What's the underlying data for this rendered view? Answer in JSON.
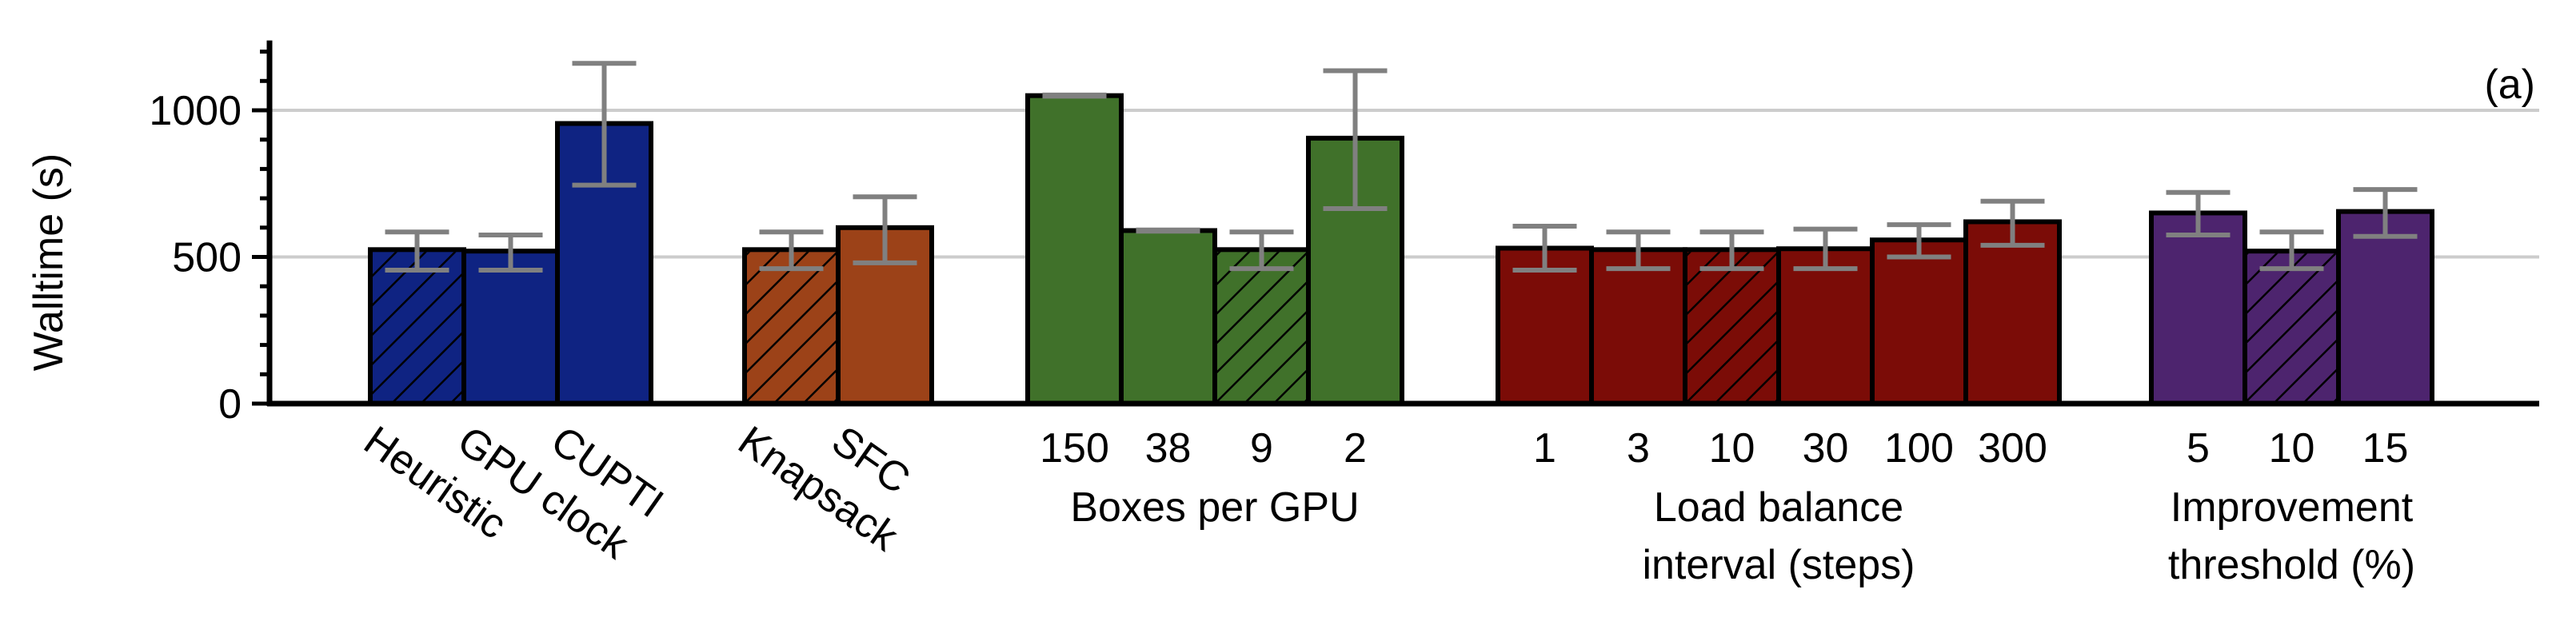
{
  "chart_data": {
    "type": "bar",
    "panel_label": "(a)",
    "ylabel": "Walltime (s)",
    "ylim": [
      0,
      1230
    ],
    "yticks": [
      0,
      500,
      1000
    ],
    "grid": "horizontal",
    "colors": {
      "costs": "#0f2382",
      "strategy": "#9c4218",
      "boxes": "#40712a",
      "interval": "#7b0c07",
      "threshold": "#4d246e",
      "errorbar": "#808080",
      "grid": "#cccccc"
    },
    "groups": [
      {
        "id": "costs",
        "label": "",
        "tick_rotation": 35,
        "categories": [
          "Heuristic",
          "GPU clock",
          "CUPTI"
        ],
        "values": [
          525,
          520,
          955
        ],
        "err_low": [
          455,
          455,
          745
        ],
        "err_high": [
          585,
          575,
          1160
        ],
        "hatched": [
          true,
          false,
          false
        ]
      },
      {
        "id": "strategy",
        "label": "",
        "tick_rotation": 35,
        "categories": [
          "Knapsack",
          "SFC"
        ],
        "values": [
          525,
          600
        ],
        "err_low": [
          460,
          480
        ],
        "err_high": [
          585,
          705
        ],
        "hatched": [
          true,
          false
        ]
      },
      {
        "id": "boxes",
        "label": "Boxes per GPU",
        "tick_rotation": 0,
        "categories": [
          "150",
          "38",
          "9",
          "2"
        ],
        "values": [
          1050,
          590,
          525,
          905
        ],
        "err_low": [
          1048,
          588,
          460,
          665
        ],
        "err_high": [
          1052,
          592,
          585,
          1135
        ],
        "hatched": [
          false,
          false,
          true,
          false
        ]
      },
      {
        "id": "interval",
        "label": "Load balance\ninterval (steps)",
        "tick_rotation": 0,
        "categories": [
          "1",
          "3",
          "10",
          "30",
          "100",
          "300"
        ],
        "values": [
          530,
          525,
          525,
          528,
          558,
          620
        ],
        "err_low": [
          455,
          460,
          460,
          460,
          500,
          540
        ],
        "err_high": [
          605,
          585,
          585,
          595,
          610,
          690
        ],
        "hatched": [
          false,
          false,
          true,
          false,
          false,
          false
        ]
      },
      {
        "id": "threshold",
        "label": "Improvement\nthreshold (%)",
        "tick_rotation": 0,
        "categories": [
          "5",
          "10",
          "15"
        ],
        "values": [
          650,
          520,
          655
        ],
        "err_low": [
          575,
          460,
          570
        ],
        "err_high": [
          720,
          585,
          730
        ],
        "hatched": [
          false,
          true,
          false
        ]
      }
    ]
  }
}
